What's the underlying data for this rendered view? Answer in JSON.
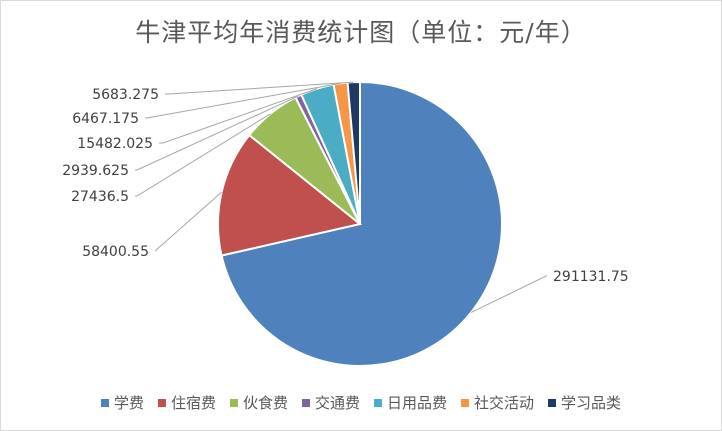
{
  "chart_data": {
    "type": "pie",
    "title": "牛津平均年消费统计图（单位：元/年）",
    "categories": [
      "学费",
      "住宿费",
      "伙食费",
      "交通费",
      "日用品费",
      "社交活动",
      "学习品类"
    ],
    "values": [
      291131.75,
      58400.55,
      27436.5,
      2939.625,
      15482.025,
      6467.175,
      5683.275
    ],
    "data_labels": [
      "291131.75",
      "58400.55",
      "27436.5",
      "2939.625",
      "15482.025",
      "6467.175",
      "5683.275"
    ],
    "colors": [
      "#4f81bd",
      "#c0504d",
      "#9bbb59",
      "#8064a2",
      "#4bacc6",
      "#f79646",
      "#1f3864"
    ],
    "legend_position": "bottom"
  }
}
